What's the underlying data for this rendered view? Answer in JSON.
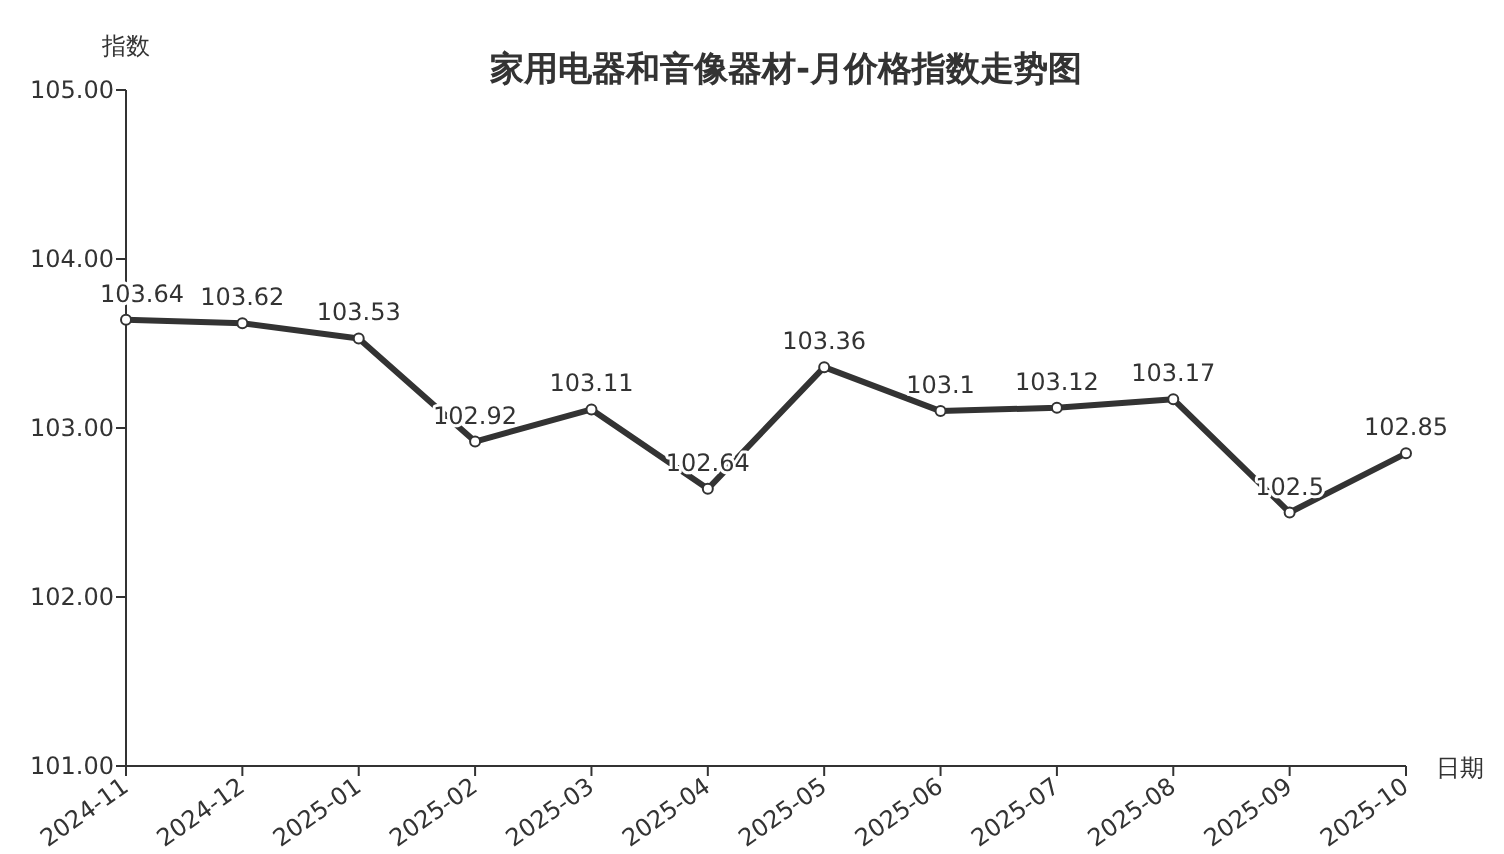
{
  "chart_data": {
    "type": "line",
    "title": "家用电器和音像器材-月价格指数走势图",
    "xlabel": "日期",
    "ylabel": "指数",
    "categories": [
      "2024-11",
      "2024-12",
      "2025-01",
      "2025-02",
      "2025-03",
      "2025-04",
      "2025-05",
      "2025-06",
      "2025-07",
      "2025-08",
      "2025-09",
      "2025-10"
    ],
    "series": [
      {
        "color": "#333333",
        "values": [
          103.64,
          103.62,
          103.53,
          102.92,
          103.11,
          102.64,
          103.36,
          103.1,
          103.12,
          103.17,
          102.5,
          102.85
        ]
      }
    ],
    "ylim": [
      101,
      105
    ],
    "yticks": [
      {
        "value": 101,
        "label": "101.00"
      },
      {
        "value": 102,
        "label": "102.00"
      },
      {
        "value": 103,
        "label": "103.00"
      },
      {
        "value": 104,
        "label": "104.00"
      },
      {
        "value": 105,
        "label": "105.00"
      }
    ],
    "data_labels": true,
    "marker": "circle",
    "line_style": "solid",
    "grid": false
  }
}
